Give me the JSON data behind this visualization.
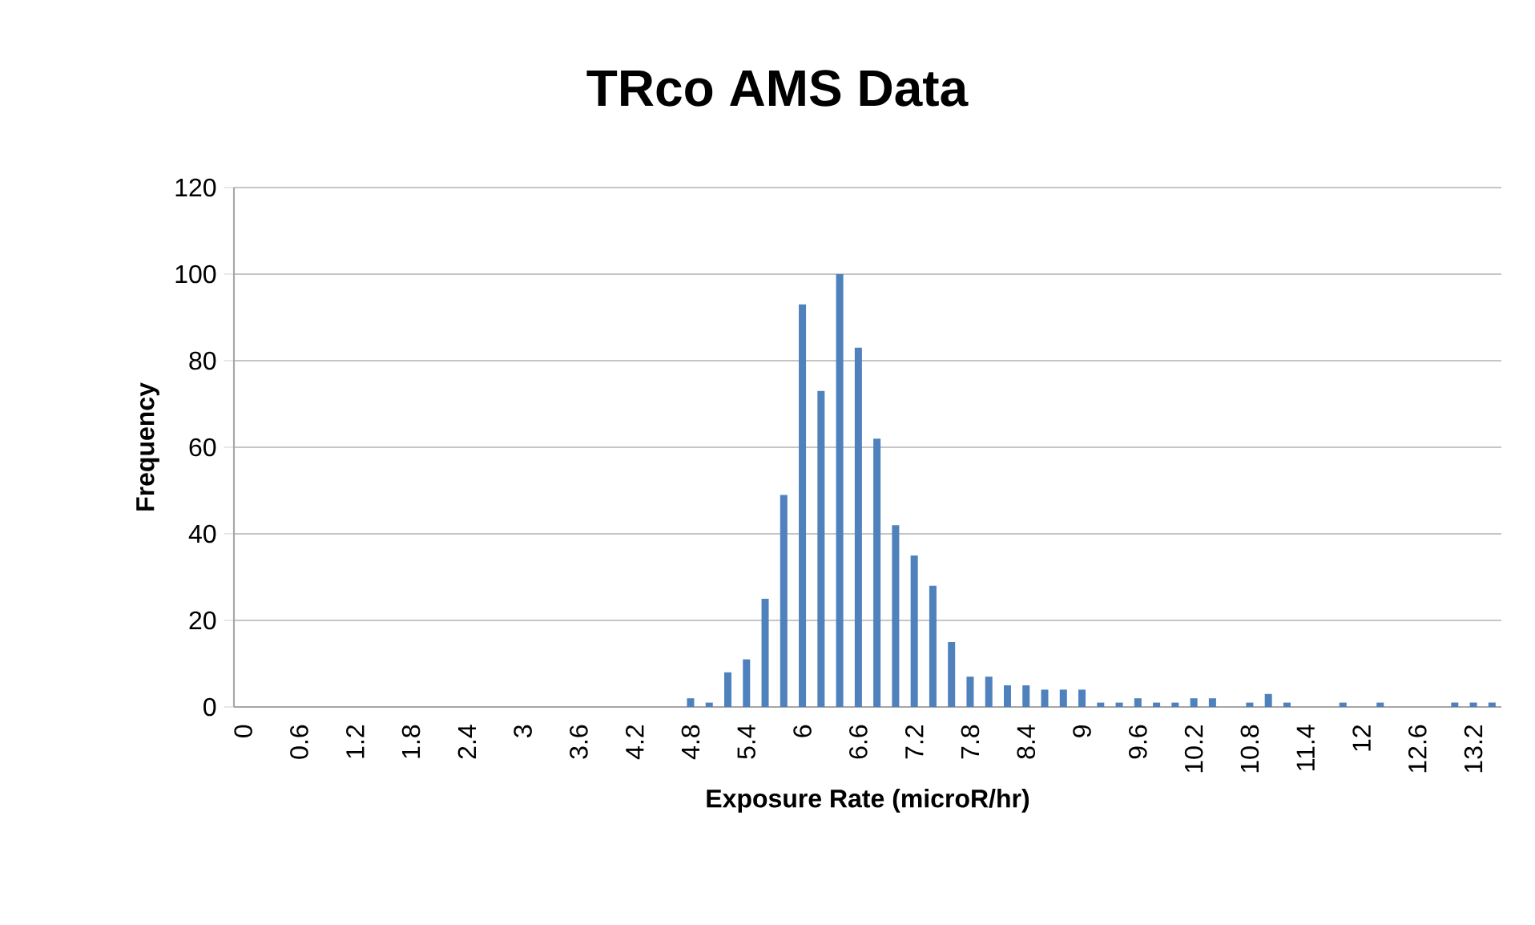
{
  "chart_data": {
    "type": "bar",
    "title": "TRco AMS Data",
    "xlabel": "Exposure Rate (microR/hr)",
    "ylabel": "Frequency",
    "categories": [
      "0",
      null,
      null,
      "0.6",
      null,
      null,
      "1.2",
      null,
      null,
      "1.8",
      null,
      null,
      "2.4",
      null,
      null,
      "3",
      null,
      null,
      "3.6",
      null,
      null,
      "4.2",
      null,
      null,
      "4.8",
      null,
      null,
      "5.4",
      null,
      null,
      "6",
      null,
      null,
      "6.6",
      null,
      null,
      "7.2",
      null,
      null,
      "7.8",
      null,
      null,
      "8.4",
      null,
      null,
      "9",
      null,
      null,
      "9.6",
      null,
      null,
      "10.2",
      null,
      null,
      "10.8",
      null,
      null,
      "11.4",
      null,
      null,
      "12",
      null,
      null,
      "12.6",
      null,
      null,
      "13.2",
      null
    ],
    "values": [
      0,
      0,
      0,
      0,
      0,
      0,
      0,
      0,
      0,
      0,
      0,
      0,
      0,
      0,
      0,
      0,
      0,
      0,
      0,
      0,
      0,
      0,
      0,
      0,
      2,
      1,
      8,
      11,
      25,
      49,
      93,
      73,
      100,
      83,
      62,
      42,
      35,
      28,
      15,
      7,
      7,
      5,
      5,
      4,
      4,
      4,
      1,
      1,
      2,
      1,
      1,
      2,
      2,
      0,
      1,
      3,
      1,
      0,
      0,
      1,
      0,
      1,
      0,
      0,
      0,
      1,
      1,
      1
    ],
    "color": "#4f81bd",
    "ylim": [
      0,
      120
    ],
    "yticks": [
      0,
      20,
      40,
      60,
      80,
      100,
      120
    ],
    "grid": "y"
  }
}
